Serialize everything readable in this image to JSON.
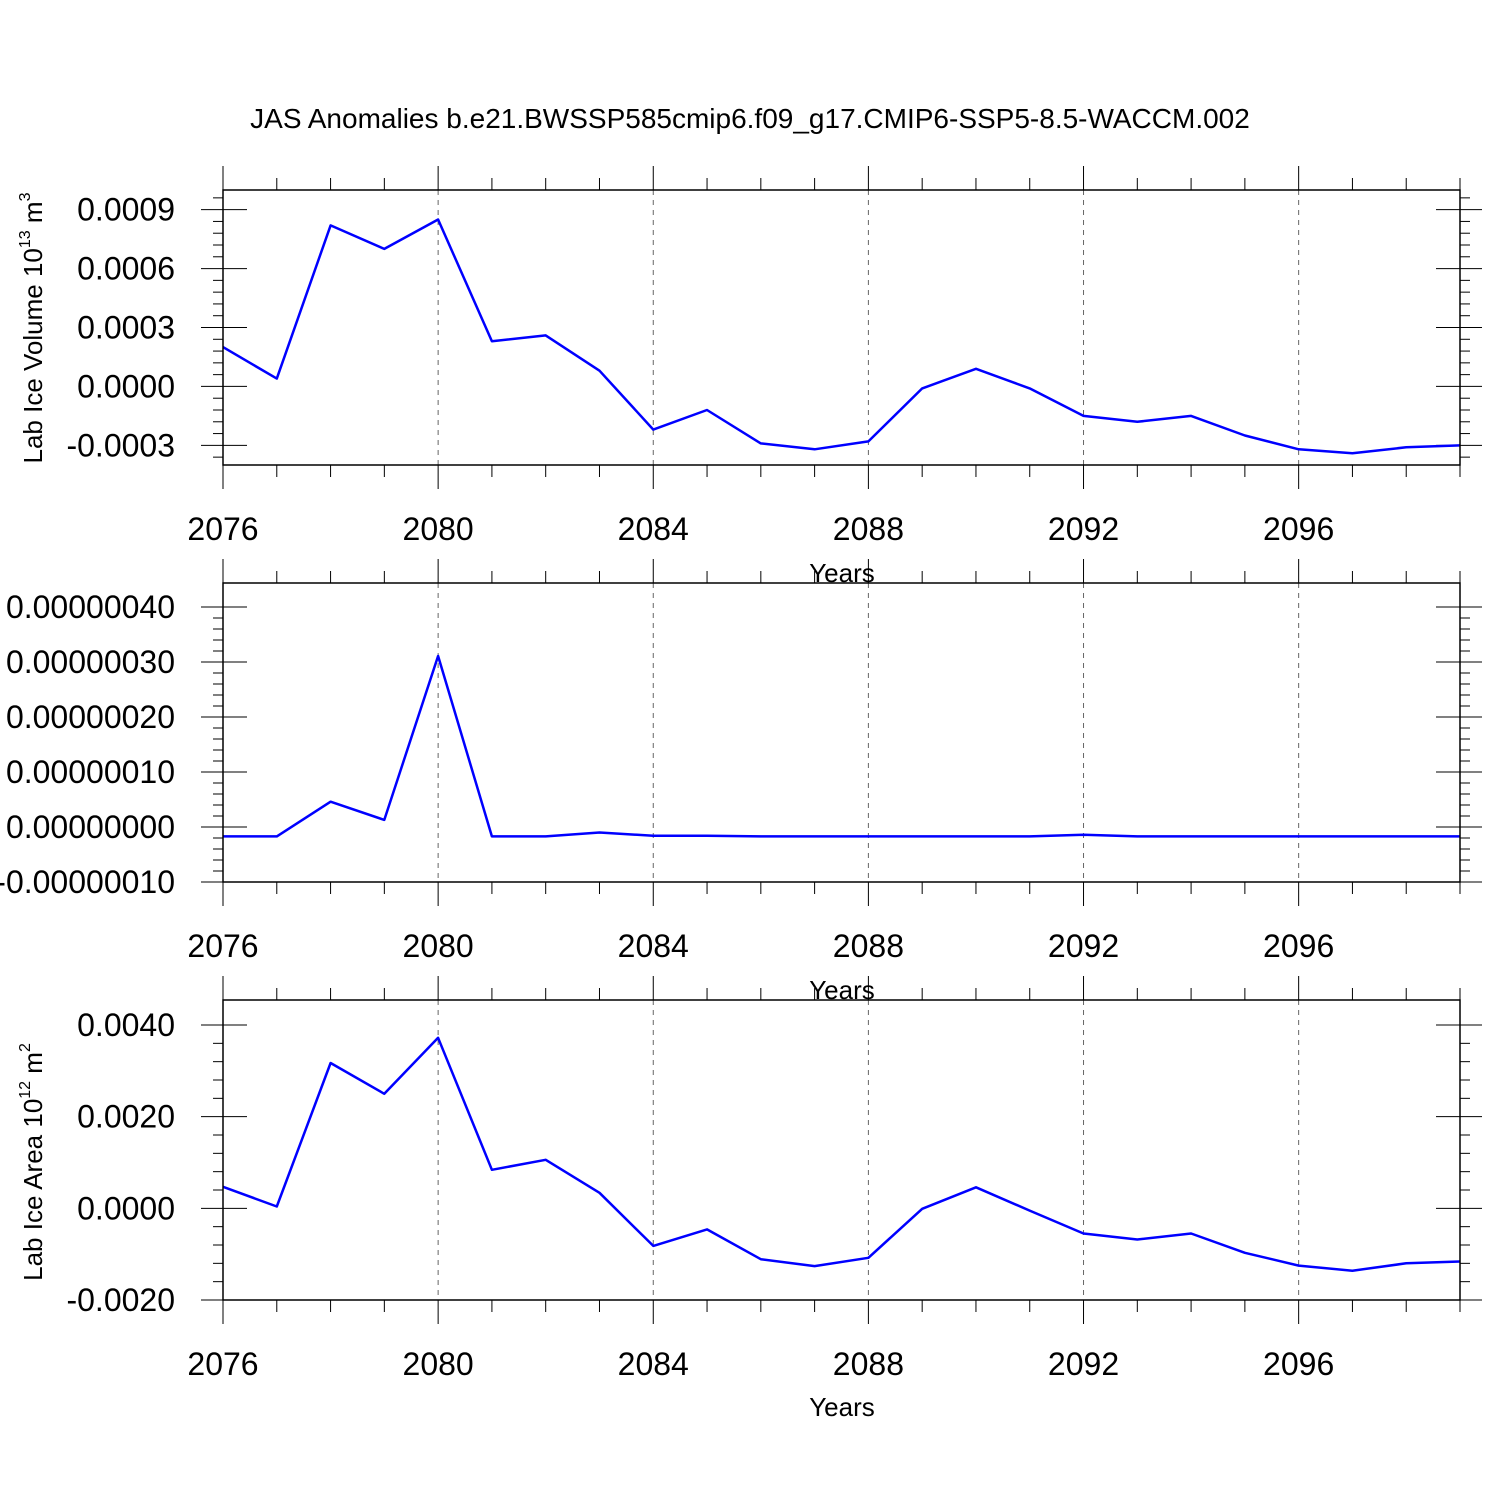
{
  "title": "JAS Anomalies b.e21.BWSSP585cmip6.f09_g17.CMIP6-SSP5-8.5-WACCM.002",
  "line_color": "#0000ff",
  "chart_data": [
    {
      "type": "line",
      "ylabel": "Lab Ice Volume 10",
      "ylabel_sup": "13",
      "ylabel_unit": " m",
      "ylabel_unit_sup": "3",
      "xlabel": "Years",
      "xlim": [
        2076,
        2099
      ],
      "ylim": [
        -0.0004,
        0.001
      ],
      "yticks": [
        -0.0003,
        0.0,
        0.0003,
        0.0006,
        0.0009
      ],
      "ytick_labels": [
        "-0.0003",
        "0.0000",
        "0.0003",
        "0.0006",
        "0.0009"
      ],
      "xticks": [
        2076,
        2080,
        2084,
        2088,
        2092,
        2096
      ],
      "xtick_labels": [
        "2076",
        "2080",
        "2084",
        "2088",
        "2092",
        "2096"
      ],
      "x": [
        2076,
        2077,
        2078,
        2079,
        2080,
        2081,
        2082,
        2083,
        2084,
        2085,
        2086,
        2087,
        2088,
        2089,
        2090,
        2091,
        2092,
        2093,
        2094,
        2095,
        2096,
        2097,
        2098,
        2099
      ],
      "values": [
        0.0002,
        4e-05,
        0.00082,
        0.0007,
        0.00085,
        0.00023,
        0.00026,
        8e-05,
        -0.00022,
        -0.00012,
        -0.00029,
        -0.00032,
        -0.00028,
        -1e-05,
        9e-05,
        -1e-05,
        -0.00015,
        -0.00018,
        -0.00015,
        -0.00025,
        -0.00032,
        -0.00034,
        -0.00031,
        -0.0003
      ]
    },
    {
      "type": "line",
      "ylabel": "",
      "xlabel": "Years",
      "xlim": [
        2076,
        2099
      ],
      "ylim": [
        -1e-07,
        4e-07
      ],
      "yticks": [
        -1e-07,
        0.0,
        1e-07,
        2e-07,
        3e-07,
        4e-07
      ],
      "ytick_labels": [
        "-0.00000010",
        "0.00000000",
        "0.00000010",
        "0.00000020",
        "0.00000030",
        "0.00000040"
      ],
      "xticks": [
        2076,
        2080,
        2084,
        2088,
        2092,
        2096
      ],
      "xtick_labels": [
        "2076",
        "2080",
        "2084",
        "2088",
        "2092",
        "2096"
      ],
      "x": [
        2076,
        2077,
        2078,
        2079,
        2080,
        2081,
        2082,
        2083,
        2084,
        2085,
        2086,
        2087,
        2088,
        2089,
        2090,
        2091,
        2092,
        2093,
        2094,
        2095,
        2096,
        2097,
        2098,
        2099
      ],
      "values": [
        -1.7e-08,
        -1.7e-08,
        4.6e-08,
        1.3e-08,
        3.11e-07,
        -1.7e-08,
        -1.7e-08,
        -1e-08,
        -1.6e-08,
        -1.6e-08,
        -1.7e-08,
        -1.7e-08,
        -1.7e-08,
        -1.7e-08,
        -1.7e-08,
        -1.7e-08,
        -1.4e-08,
        -1.7e-08,
        -1.7e-08,
        -1.7e-08,
        -1.7e-08,
        -1.7e-08,
        -1.7e-08,
        -1.7e-08
      ]
    },
    {
      "type": "line",
      "ylabel": "Lab Ice Area 10",
      "ylabel_sup": "12",
      "ylabel_unit": " m",
      "ylabel_unit_sup": "2",
      "xlabel": "Years",
      "xlim": [
        2076,
        2099
      ],
      "ylim": [
        -0.002,
        0.004
      ],
      "yticks": [
        -0.002,
        0.0,
        0.002,
        0.004
      ],
      "ytick_labels": [
        "-0.0020",
        "0.0000",
        "0.0020",
        "0.0040"
      ],
      "xticks": [
        2076,
        2080,
        2084,
        2088,
        2092,
        2096
      ],
      "xtick_labels": [
        "2076",
        "2080",
        "2084",
        "2088",
        "2092",
        "2096"
      ],
      "x": [
        2076,
        2077,
        2078,
        2079,
        2080,
        2081,
        2082,
        2083,
        2084,
        2085,
        2086,
        2087,
        2088,
        2089,
        2090,
        2091,
        2092,
        2093,
        2094,
        2095,
        2096,
        2097,
        2098,
        2099
      ],
      "values": [
        0.00047,
        4e-05,
        0.00317,
        0.0025,
        0.00372,
        0.00084,
        0.00106,
        0.00034,
        -0.00082,
        -0.00046,
        -0.00111,
        -0.00126,
        -0.00108,
        -1e-05,
        0.00046,
        -5e-05,
        -0.00055,
        -0.00068,
        -0.00055,
        -0.00097,
        -0.00125,
        -0.00136,
        -0.0012,
        -0.00116
      ]
    }
  ]
}
